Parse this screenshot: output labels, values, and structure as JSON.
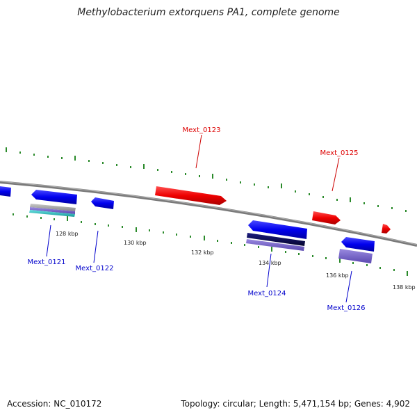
{
  "title": "Methylobacterium extorquens PA1, complete genome",
  "footer": {
    "accession": "Accession: NC_010172",
    "summary": "Topology: circular; Length: 5,471,154 bp; Genes: 4,902"
  },
  "colors": {
    "forward": "#e00000",
    "reverse": "#0000dd",
    "backbone": "#7a7a7a",
    "ticks": "#228b22",
    "cds_dark": "#0a0a55",
    "cds_light": "#7766cc",
    "rna_cyan": "#33cccc"
  },
  "tick_labels": [
    "128 kbp",
    "130 kbp",
    "132 kbp",
    "134 kbp",
    "136 kbp",
    "138 kbp"
  ],
  "genes": {
    "forward": [
      "Mext_0123",
      "Mext_0125"
    ],
    "reverse": [
      "Mext_0121",
      "Mext_0122",
      "Mext_0124",
      "Mext_0126"
    ]
  }
}
